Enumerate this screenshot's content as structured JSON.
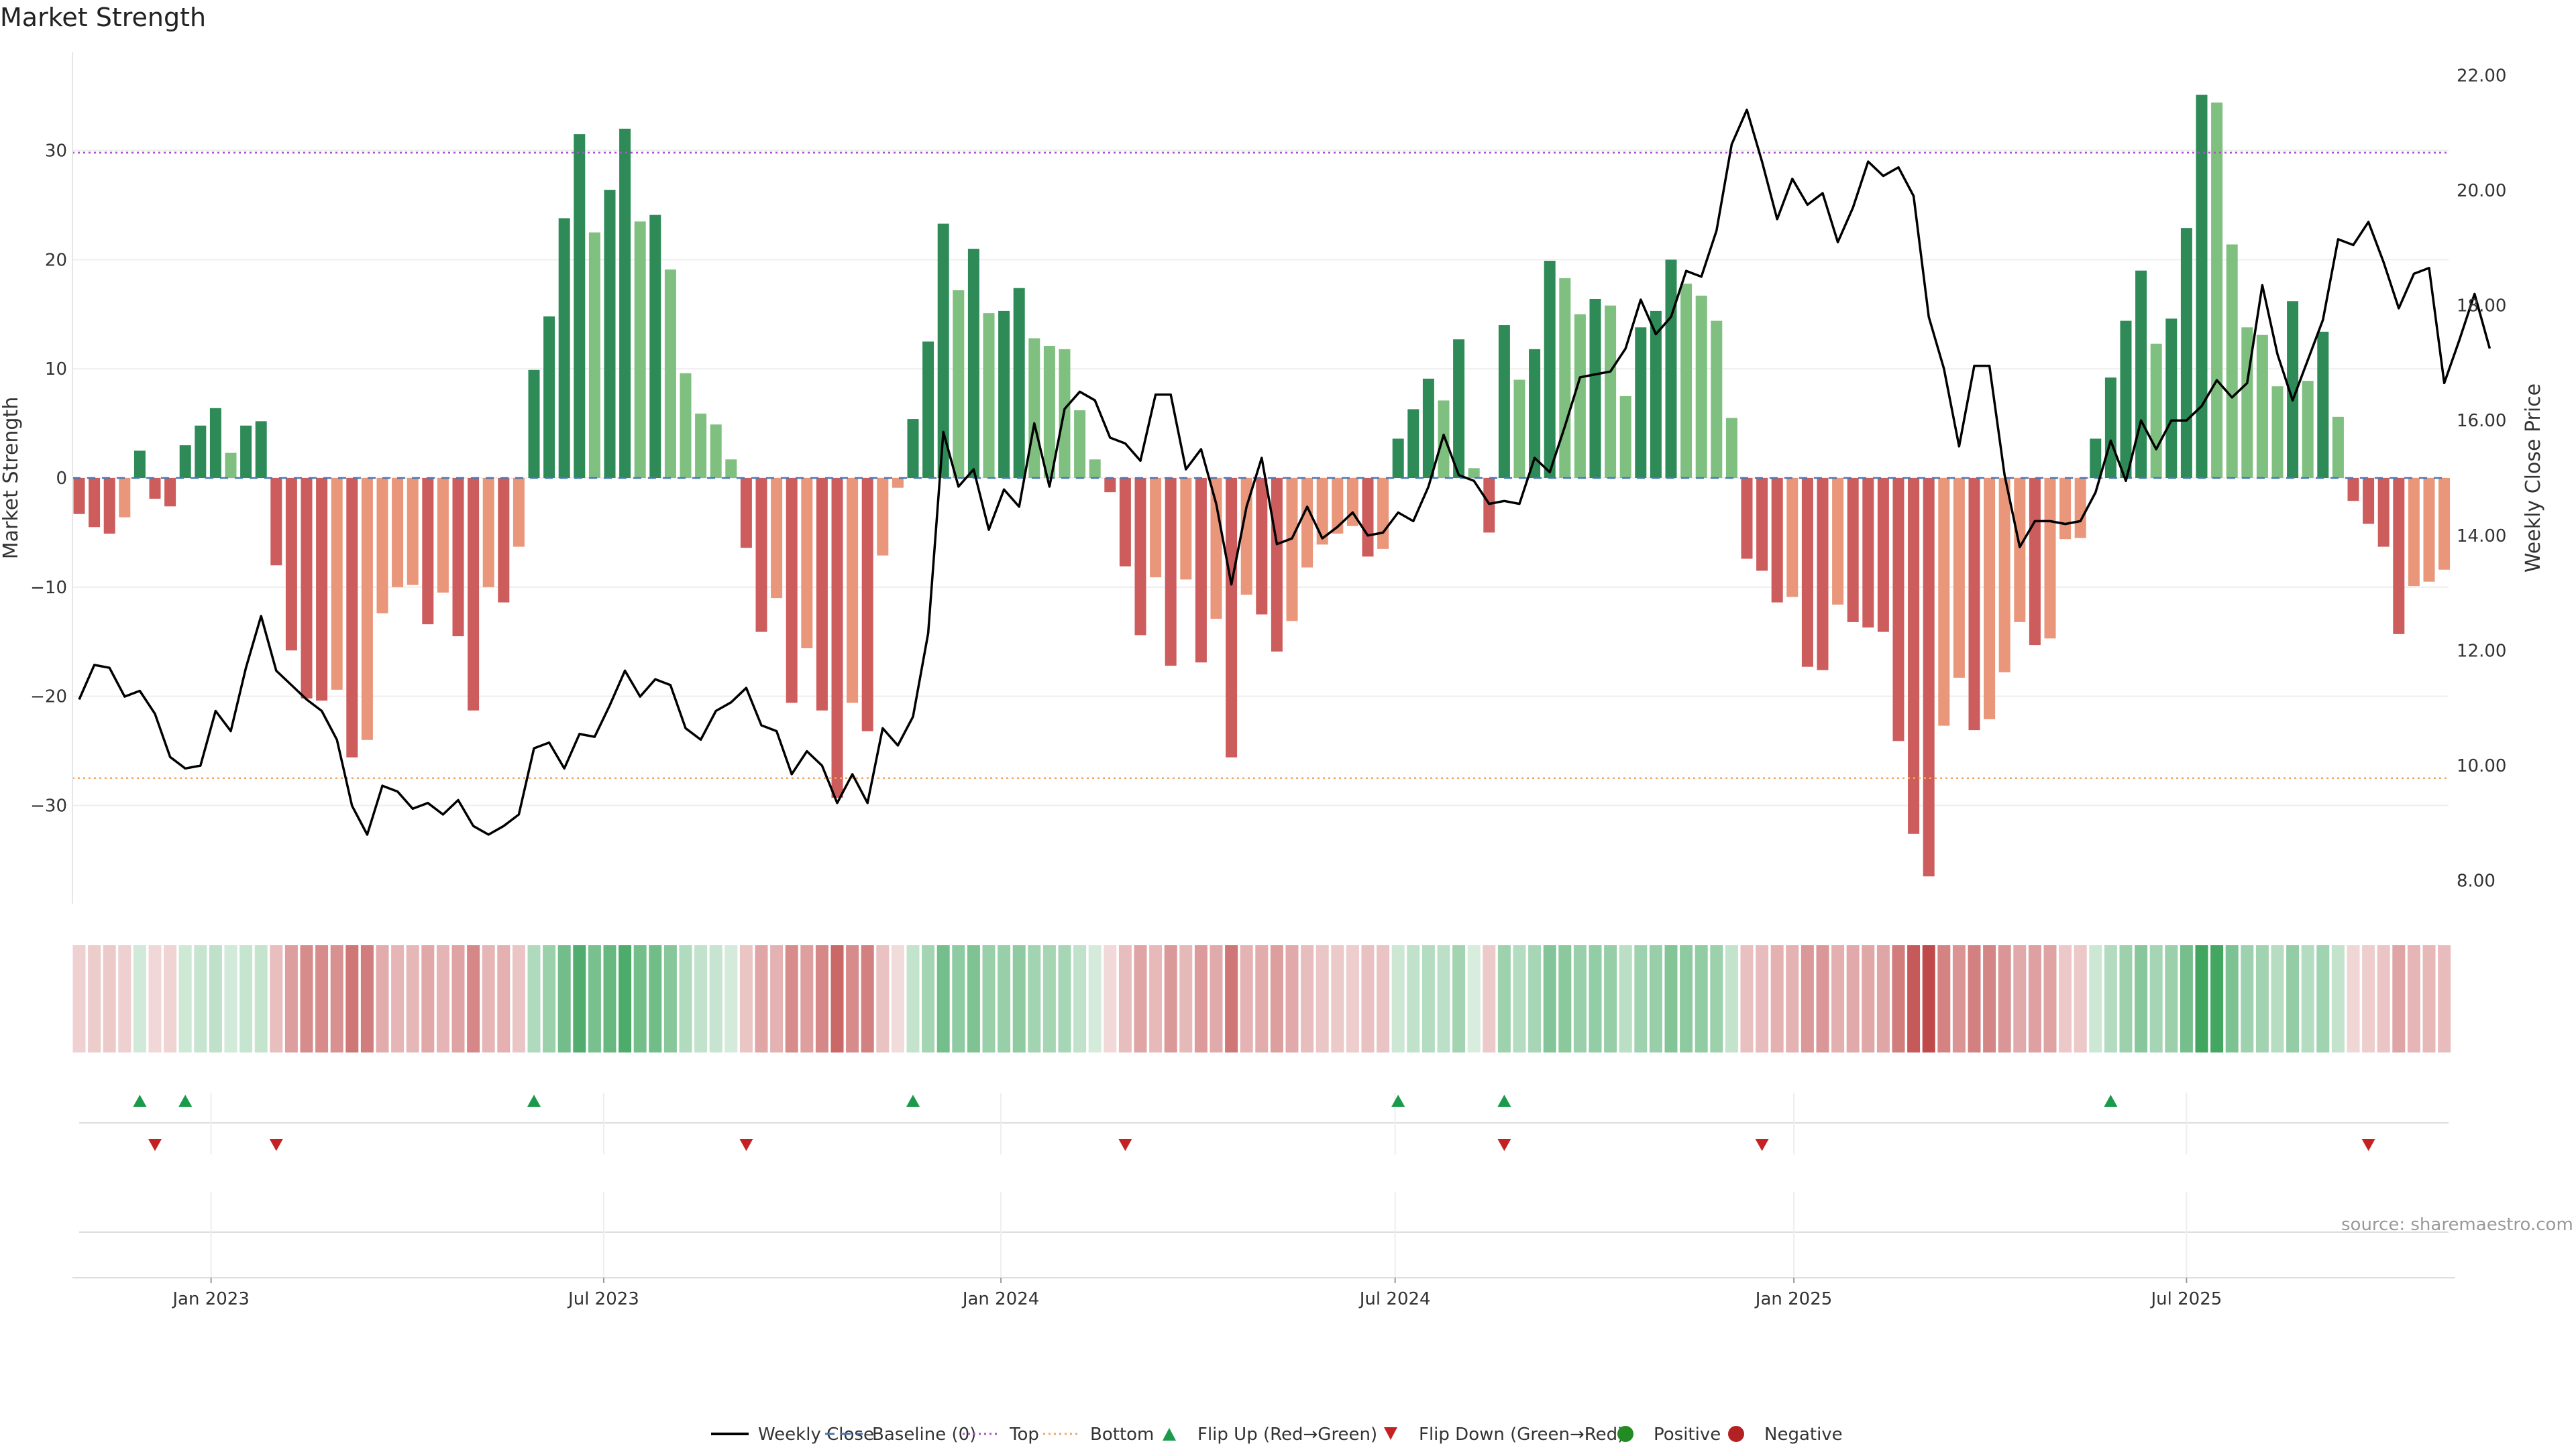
{
  "title": "Market Strength",
  "source": "source: sharemaestro.com",
  "colors": {
    "positive_dark": "#2e8b57",
    "positive_light": "#7fbf7f",
    "negative_dark": "#cd5c5c",
    "negative_light": "#e9967a",
    "top_line": "#b04fd0",
    "bottom_line": "#f0a860",
    "baseline": "#4a78b5",
    "price_line": "#000000",
    "flip_up": "#1a9a4a",
    "flip_down": "#c42222",
    "positive_marker": "#228b22",
    "negative_marker": "#b22222"
  },
  "legend": [
    {
      "label": "Weekly Close",
      "kind": "line",
      "color": "#000000"
    },
    {
      "label": "Baseline (0)",
      "kind": "dash",
      "color": "#4a78b5"
    },
    {
      "label": "Top",
      "kind": "dot",
      "color": "#b04fd0"
    },
    {
      "label": "Bottom",
      "kind": "dot",
      "color": "#f0a860"
    },
    {
      "label": "Flip Up (Red→Green)",
      "kind": "tri-up",
      "color": "#1a9a4a"
    },
    {
      "label": "Flip Down (Green→Red)",
      "kind": "tri-down",
      "color": "#c42222"
    },
    {
      "label": "Positive",
      "kind": "circle",
      "color": "#228b22"
    },
    {
      "label": "Negative",
      "kind": "circle",
      "color": "#b22222"
    }
  ],
  "chart_data": {
    "type": "bar",
    "title": "Market Strength",
    "ylabel": "Market Strength",
    "y2label": "Weekly Close Price",
    "ylim": [
      -39,
      39
    ],
    "y2lim": [
      7.6,
      22.4
    ],
    "yticks": [
      -30,
      -20,
      -10,
      0,
      10,
      20,
      30
    ],
    "y2ticks": [
      "8.00",
      "10.00",
      "12.00",
      "14.00",
      "16.00",
      "18.00",
      "20.00",
      "22.00"
    ],
    "y2tick_values": [
      8,
      10,
      12,
      14,
      16,
      18,
      20,
      22
    ],
    "top_level": 29.8,
    "bottom_level": -27.5,
    "x_ticks": [
      {
        "label": "Jan 2023",
        "week": 8.7
      },
      {
        "label": "Jul 2023",
        "week": 34.6
      },
      {
        "label": "Jan 2024",
        "week": 60.8
      },
      {
        "label": "Jul 2024",
        "week": 86.8
      },
      {
        "label": "Jan 2025",
        "week": 113.1
      },
      {
        "label": "Jul 2025",
        "week": 139.0
      }
    ],
    "strength": [
      -3.3,
      -4.5,
      -5.1,
      -3.6,
      2.5,
      -1.9,
      -2.6,
      3.0,
      4.8,
      6.4,
      2.3,
      4.8,
      5.2,
      -8.0,
      -15.8,
      -20.2,
      -20.4,
      -19.4,
      -25.6,
      -24.0,
      -12.4,
      -10.0,
      -9.8,
      -13.4,
      -10.5,
      -14.5,
      -21.3,
      -10.0,
      -11.4,
      -6.3,
      9.9,
      14.8,
      23.8,
      31.5,
      22.5,
      26.4,
      32.0,
      23.5,
      24.1,
      19.1,
      9.6,
      5.9,
      4.9,
      1.7,
      -6.4,
      -14.1,
      -11.0,
      -20.6,
      -15.6,
      -21.3,
      -29.3,
      -20.6,
      -23.2,
      -7.1,
      -0.9,
      5.4,
      12.5,
      23.3,
      17.2,
      21.0,
      15.1,
      15.3,
      17.4,
      12.8,
      12.1,
      11.8,
      6.2,
      1.7,
      -1.3,
      -8.1,
      -14.4,
      -9.1,
      -17.2,
      -9.3,
      -16.9,
      -12.9,
      -25.6,
      -10.7,
      -12.5,
      -15.9,
      -13.1,
      -8.2,
      -6.1,
      -5.1,
      -4.4,
      -7.2,
      -6.5,
      3.6,
      6.3,
      9.1,
      7.1,
      12.7,
      0.9,
      -5.0,
      14.0,
      9.0,
      11.8,
      19.9,
      18.3,
      15.0,
      16.4,
      15.8,
      7.5,
      13.8,
      15.3,
      20.0,
      17.8,
      16.7,
      14.4,
      5.5,
      -7.4,
      -8.5,
      -11.4,
      -10.9,
      -17.3,
      -17.6,
      -11.6,
      -13.2,
      -13.7,
      -14.1,
      -24.1,
      -32.6,
      -36.5,
      -22.7,
      -18.3,
      -23.1,
      -22.1,
      -17.8,
      -13.2,
      -15.3,
      -14.7,
      -5.6,
      -5.5,
      3.6,
      9.2,
      14.4,
      19.0,
      12.3,
      14.6,
      22.9,
      35.1,
      34.4,
      21.4,
      13.8,
      13.1,
      8.4,
      16.2,
      8.9,
      13.4,
      5.6,
      -2.1,
      -4.2,
      -6.3,
      -14.3,
      -9.9,
      -9.5,
      -8.4
    ],
    "close": [
      11.15,
      11.75,
      11.7,
      11.2,
      11.3,
      10.9,
      10.15,
      9.95,
      10.0,
      10.95,
      10.6,
      11.7,
      12.6,
      11.65,
      11.4,
      11.15,
      10.95,
      10.45,
      9.3,
      8.8,
      9.65,
      9.55,
      9.25,
      9.35,
      9.15,
      9.4,
      8.95,
      8.8,
      8.95,
      9.15,
      10.3,
      10.4,
      9.95,
      10.55,
      10.5,
      11.05,
      11.65,
      11.2,
      11.5,
      11.4,
      10.65,
      10.45,
      10.95,
      11.1,
      11.35,
      10.7,
      10.6,
      9.85,
      10.25,
      10.0,
      9.35,
      9.85,
      9.35,
      10.65,
      10.35,
      10.85,
      12.3,
      15.8,
      14.85,
      15.15,
      14.1,
      14.8,
      14.5,
      15.95,
      14.85,
      16.2,
      16.5,
      16.35,
      15.7,
      15.6,
      15.3,
      16.45,
      16.45,
      15.15,
      15.5,
      14.55,
      13.15,
      14.5,
      15.35,
      13.85,
      13.95,
      14.5,
      13.95,
      14.15,
      14.4,
      14.0,
      14.05,
      14.4,
      14.25,
      14.85,
      15.75,
      15.05,
      14.95,
      14.55,
      14.6,
      14.55,
      15.35,
      15.1,
      15.9,
      16.75,
      16.8,
      16.85,
      17.25,
      18.1,
      17.5,
      17.8,
      18.6,
      18.5,
      19.3,
      20.8,
      21.4,
      20.5,
      19.5,
      20.2,
      19.75,
      19.95,
      19.1,
      19.7,
      20.5,
      20.25,
      20.4,
      19.9,
      17.8,
      16.9,
      15.55,
      16.95,
      16.95,
      15.05,
      13.8,
      14.25,
      14.25,
      14.2,
      14.25,
      14.75,
      15.65,
      14.95,
      16.0,
      15.5,
      16.0,
      16.0,
      16.25,
      16.7,
      16.4,
      16.65,
      18.35,
      17.15,
      16.35,
      17.05,
      17.75,
      19.15,
      19.05,
      19.45,
      18.75,
      17.95,
      18.55,
      18.65,
      16.65,
      17.4,
      18.2,
      17.25
    ],
    "heat_intensity_note": "heat strip color follows strength sign and magnitude",
    "flip_up_weeks": [
      4,
      7,
      30,
      55,
      87,
      94,
      134
    ],
    "flip_down_weeks": [
      5,
      13,
      44,
      69,
      94,
      111,
      151
    ]
  }
}
